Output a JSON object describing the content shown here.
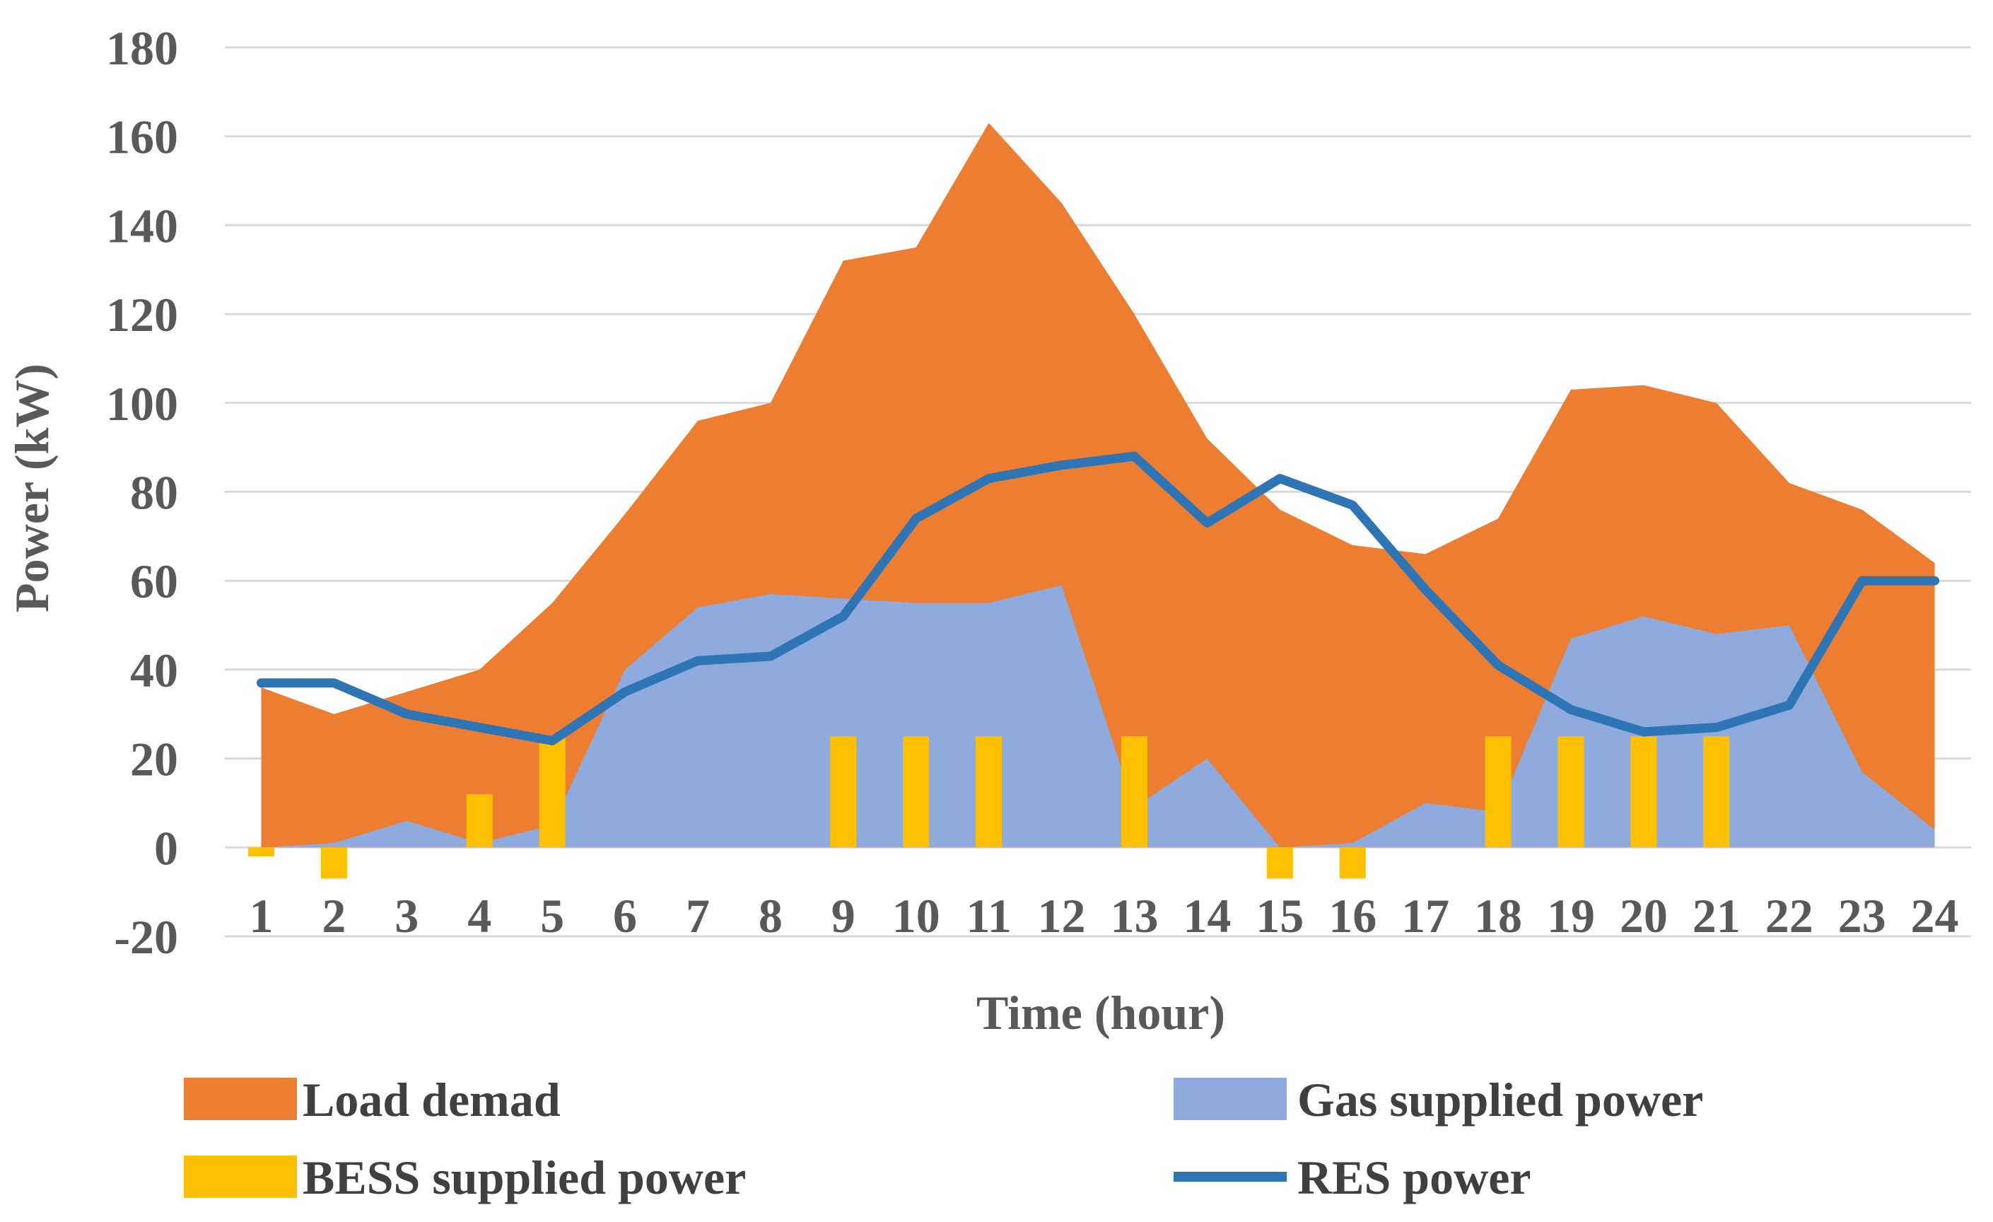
{
  "chart_data": {
    "type": "area",
    "title": "",
    "xlabel": "Time (hour)",
    "ylabel": "Power (kW)",
    "ylim": [
      -20,
      180
    ],
    "yticks": [
      -20,
      0,
      20,
      40,
      60,
      80,
      100,
      120,
      140,
      160,
      180
    ],
    "categories": [
      "1",
      "2",
      "3",
      "4",
      "5",
      "6",
      "7",
      "8",
      "9",
      "10",
      "11",
      "12",
      "13",
      "14",
      "15",
      "16",
      "17",
      "18",
      "19",
      "20",
      "21",
      "22",
      "23",
      "24"
    ],
    "grid": true,
    "legend_position": "bottom",
    "series": [
      {
        "name": "Load demad",
        "kind": "area",
        "color": "#ED7D31",
        "values": [
          36,
          30,
          35,
          40,
          55,
          75,
          96,
          100,
          132,
          135,
          163,
          145,
          120,
          92,
          76,
          68,
          66,
          74,
          103,
          104,
          100,
          82,
          76,
          64
        ]
      },
      {
        "name": "Gas supplied power",
        "kind": "area",
        "color": "#8FAADC",
        "values": [
          0,
          1,
          6,
          1,
          5,
          40,
          54,
          57,
          56,
          55,
          55,
          59,
          9,
          20,
          0,
          1,
          10,
          8,
          47,
          52,
          48,
          50,
          17,
          4
        ]
      },
      {
        "name": "BESS supplied power",
        "kind": "bar",
        "color": "#FFC000",
        "values": [
          -2,
          -7,
          0,
          12,
          25,
          0,
          0,
          0,
          25,
          25,
          25,
          0,
          25,
          0,
          -7,
          -7,
          0,
          25,
          25,
          25,
          25,
          0,
          0,
          0
        ]
      },
      {
        "name": "RES power",
        "kind": "line",
        "color": "#2E75B6",
        "values": [
          37,
          37,
          30,
          27,
          24,
          35,
          42,
          43,
          52,
          74,
          83,
          86,
          88,
          73,
          83,
          77,
          58,
          41,
          31,
          26,
          27,
          32,
          60,
          60
        ]
      }
    ]
  }
}
